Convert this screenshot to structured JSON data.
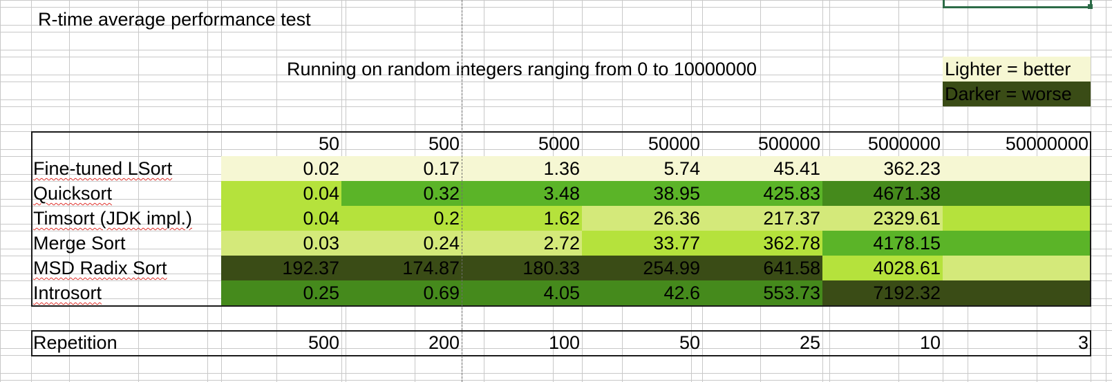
{
  "sheet_title": "R-time average performance test",
  "subtitle": "Running on random integers ranging from 0 to 10000000",
  "legend": {
    "lighter": {
      "label": "Lighter = better",
      "color": "#f6f7d3"
    },
    "darker": {
      "label": "Darker = worse",
      "color": "#3a4c16"
    }
  },
  "sizes": [
    "50",
    "500",
    "5000",
    "50000",
    "500000",
    "5000000",
    "50000000"
  ],
  "rows": [
    {
      "name": "Fine-tuned LSort",
      "values": [
        "0.02",
        "0.17",
        "1.36",
        "5.74",
        "45.41",
        "362.23",
        ""
      ],
      "colors": [
        "#f6f7d3",
        "#f6f7d3",
        "#f6f7d3",
        "#f6f7d3",
        "#f6f7d3",
        "#f6f7d3",
        "#f6f7d3"
      ]
    },
    {
      "name": "Quicksort",
      "values": [
        "0.04",
        "0.32",
        "3.48",
        "38.95",
        "425.83",
        "4671.38",
        ""
      ],
      "colors": [
        "#b5e23c",
        "#5bb428",
        "#5bb428",
        "#5bb428",
        "#5bb428",
        "#458a1c",
        "#458a1c"
      ]
    },
    {
      "name": "Timsort (JDK impl.)",
      "values": [
        "0.04",
        "0.2",
        "1.62",
        "26.36",
        "217.37",
        "2329.61",
        ""
      ],
      "colors": [
        "#b5e23c",
        "#b5e23c",
        "#b5e23c",
        "#d4e97a",
        "#d4e97a",
        "#d4e97a",
        "#b5e23c"
      ]
    },
    {
      "name": "Merge Sort",
      "values": [
        "0.03",
        "0.24",
        "2.72",
        "33.77",
        "362.78",
        "4178.15",
        ""
      ],
      "colors": [
        "#d4e97a",
        "#d4e97a",
        "#d4e97a",
        "#b5e23c",
        "#b5e23c",
        "#5bb428",
        "#5bb428"
      ]
    },
    {
      "name": "MSD Radix Sort",
      "values": [
        "192.37",
        "174.87",
        "180.33",
        "254.99",
        "641.58",
        "4028.61",
        ""
      ],
      "colors": [
        "#3a4c16",
        "#3a4c16",
        "#3a4c16",
        "#3a4c16",
        "#3a4c16",
        "#b5e23c",
        "#d4e97a"
      ]
    },
    {
      "name": "Introsort",
      "values": [
        "0.25",
        "0.69",
        "4.05",
        "42.6",
        "553.73",
        "7192.32",
        ""
      ],
      "colors": [
        "#458a1c",
        "#458a1c",
        "#458a1c",
        "#458a1c",
        "#458a1c",
        "#3a4c16",
        "#3a4c16"
      ]
    }
  ],
  "repetition": {
    "label": "Repetition",
    "values": [
      "500",
      "200",
      "100",
      "50",
      "25",
      "10",
      "3"
    ]
  },
  "spellcheck_flagged": [
    "Fine-tuned LSort",
    "Quicksort",
    "Timsort (JDK impl.)",
    "MSD Radix Sort",
    "Introsort"
  ]
}
